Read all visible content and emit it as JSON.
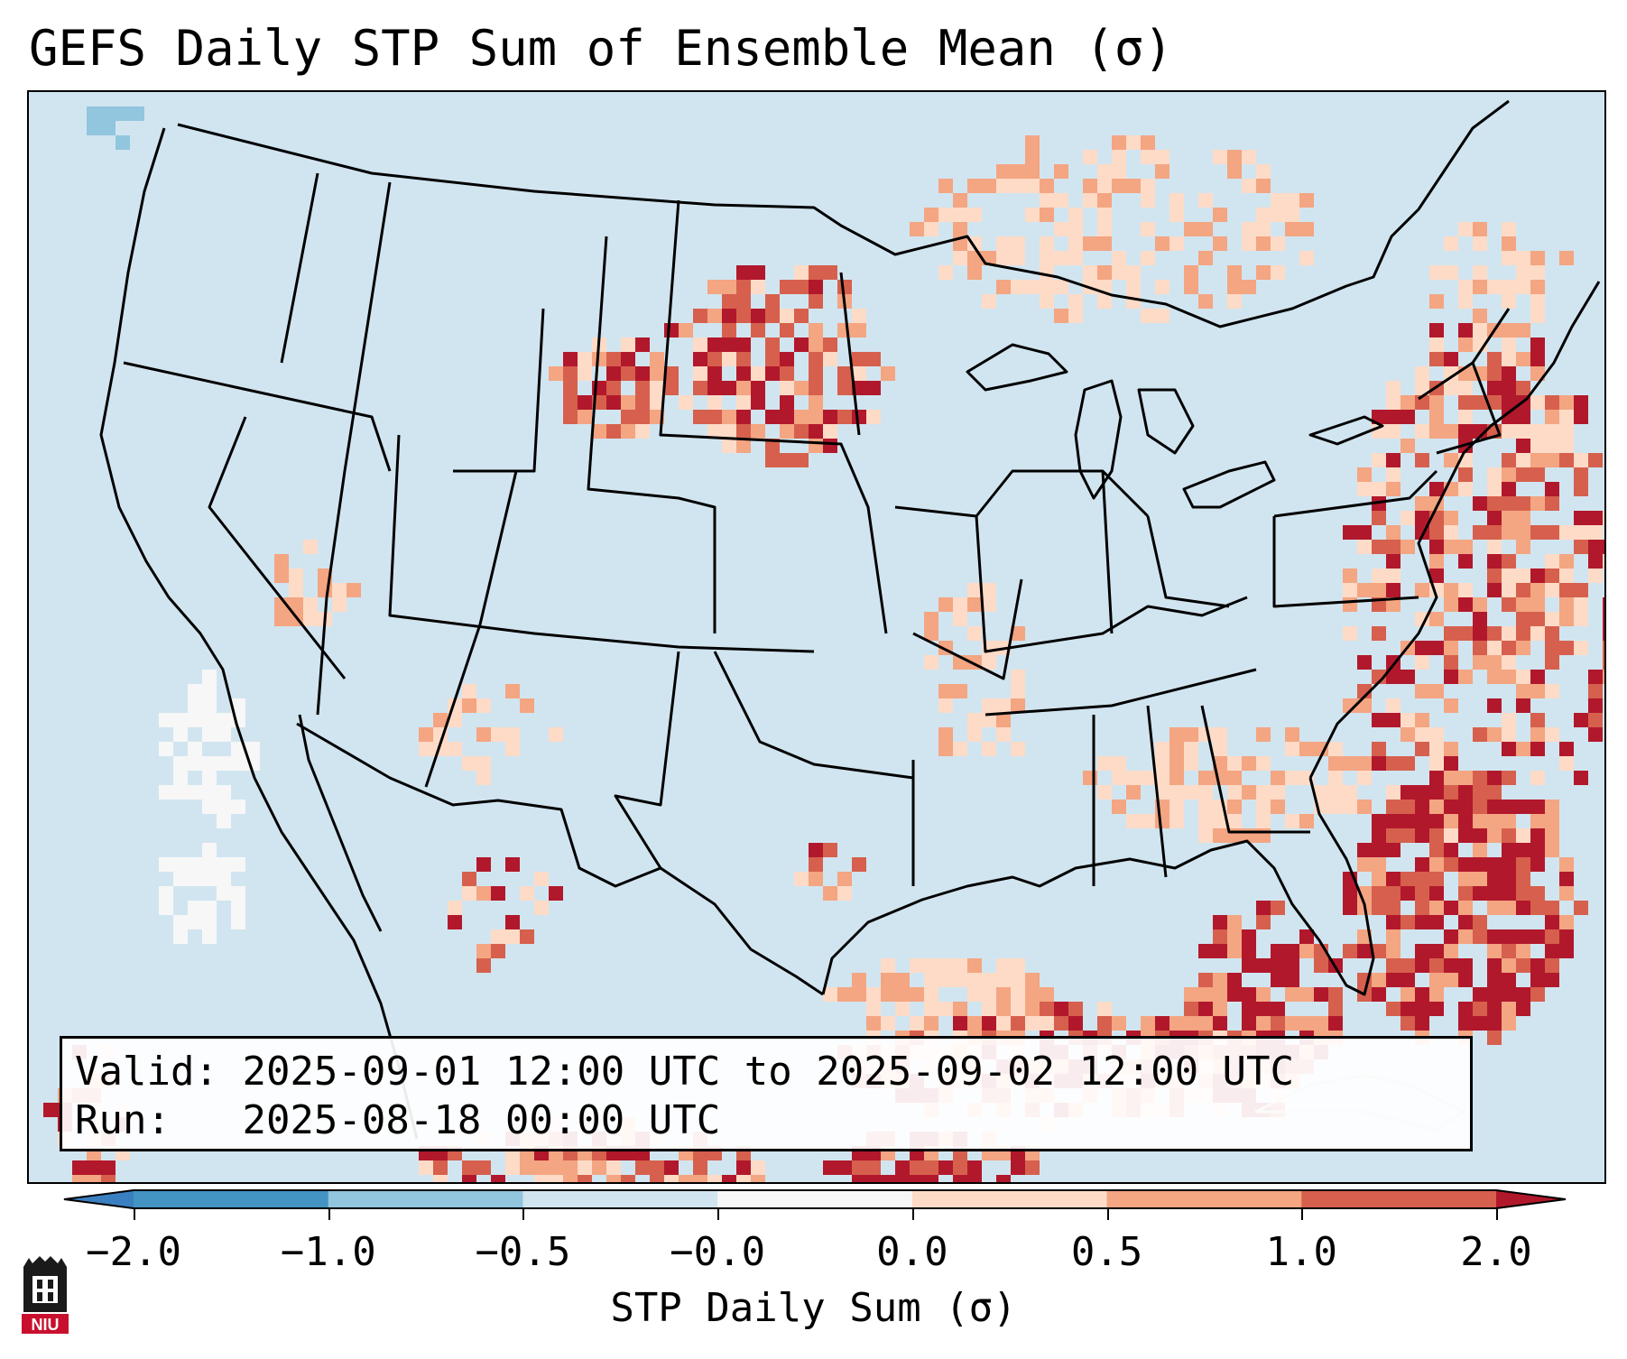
{
  "title": "GEFS Daily STP Sum of Ensemble Mean (σ)",
  "valid_box": {
    "valid_label": "Valid:",
    "valid_value": "2025-09-01 12:00 UTC to 2025-09-02 12:00 UTC",
    "run_label": "Run:",
    "run_value": "2025-08-18 00:00 UTC"
  },
  "colorbar": {
    "label": "STP Daily Sum (σ)",
    "ticks": [
      "−2.0",
      "−1.0",
      "−0.5",
      "−0.0",
      "0.0",
      "0.5",
      "1.0",
      "2.0"
    ],
    "bins": [
      {
        "range": "<-2.0",
        "color": "#3a7fc0"
      },
      {
        "range": "-2.0 to -1.0",
        "color": "#4393c3"
      },
      {
        "range": "-1.0 to -0.5",
        "color": "#92c5de"
      },
      {
        "range": "-0.5 to -0.0",
        "color": "#d1e5f0"
      },
      {
        "range": "-0.0 to 0.0",
        "color": "#f7f7f7"
      },
      {
        "range": "0.0 to 0.5",
        "color": "#fddbc7"
      },
      {
        "range": "0.5 to 1.0",
        "color": "#f4a582"
      },
      {
        "range": "1.0 to 2.0",
        "color": "#d6604d"
      },
      {
        "range": ">2.0",
        "color": "#b2182b"
      }
    ]
  },
  "map": {
    "background_color": "#d1e5f0",
    "region": "CONUS",
    "anomaly_areas": [
      {
        "area": "Southeast US coast / Atlantic",
        "level": "1.0 to 2.0+"
      },
      {
        "area": "Florida / Gulf of Mexico",
        "level": "1.0 to 2.0+"
      },
      {
        "area": "North Dakota / South Dakota",
        "level": "1.0 to 2.0+"
      },
      {
        "area": "Northeast Atlantic offshore",
        "level": "0.5 to 2.0"
      },
      {
        "area": "Ontario / Quebec",
        "level": "0.0 to 0.5"
      }
    ]
  },
  "logo": {
    "text": "NIU",
    "color": "#c8102e"
  }
}
